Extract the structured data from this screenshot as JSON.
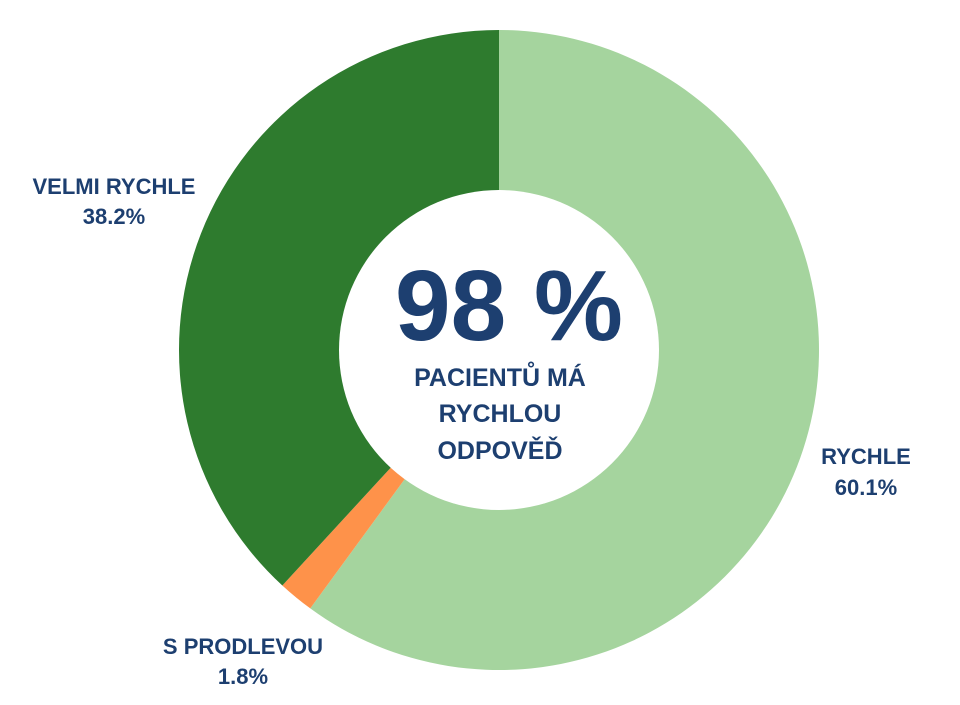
{
  "chart_data": {
    "type": "pie",
    "title": "",
    "center_value": "98 %",
    "center_text": [
      "PACIENTŮ MÁ",
      "RYCHLOU",
      "ODPOVĚĎ"
    ],
    "slices": [
      {
        "label": "RYCHLE",
        "value": 60.1,
        "value_text": "60.1%",
        "color": "#a5d49e"
      },
      {
        "label": "S PRODLEVOU",
        "value": 1.8,
        "value_text": "1.8%",
        "color": "#fe924a"
      },
      {
        "label": "VELMI RYCHLE",
        "value": 38.2,
        "value_text": "38.2%",
        "color": "#2e7b2e"
      }
    ]
  }
}
